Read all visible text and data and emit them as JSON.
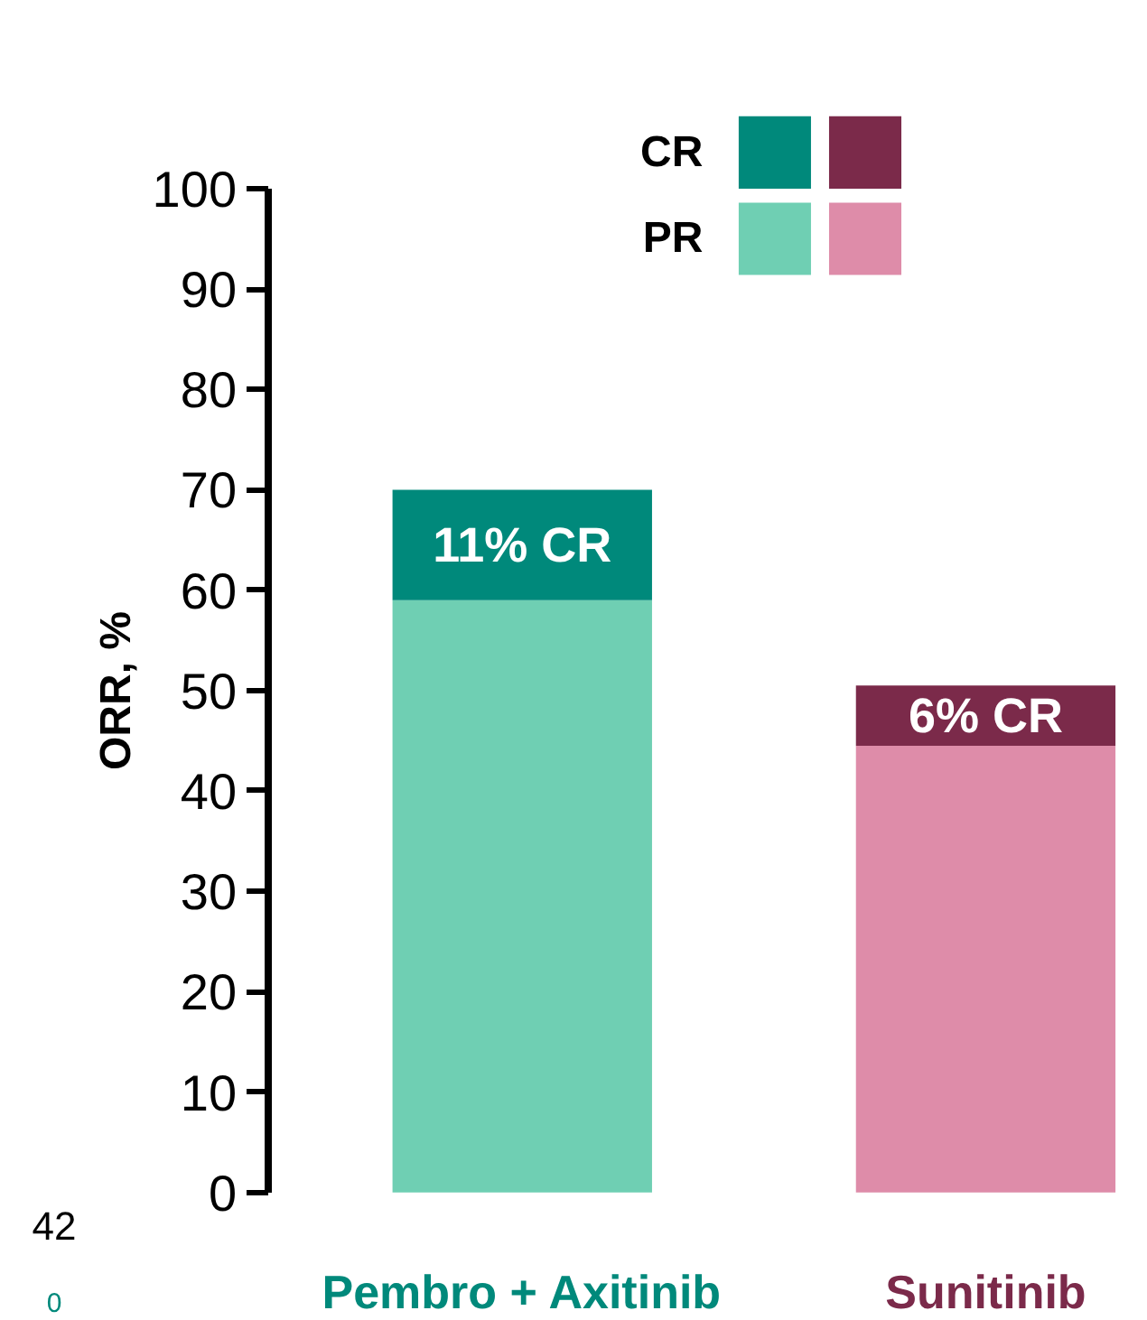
{
  "chart_data": {
    "type": "bar",
    "stacked": true,
    "ylabel": "ORR, %",
    "categories": [
      "Pembro + Axitinib",
      "Sunitinib"
    ],
    "ylim": [
      0,
      100
    ],
    "yticks": [
      0,
      10,
      20,
      30,
      40,
      50,
      60,
      70,
      80,
      90,
      100
    ],
    "grid": false,
    "legend": "top",
    "series": [
      {
        "name": "PR",
        "colors": [
          "#6fcfb3",
          "#de8ca9"
        ],
        "values": [
          59,
          44.5
        ]
      },
      {
        "name": "CR",
        "colors": [
          "#00897b",
          "#7b2a4a"
        ],
        "values": [
          11,
          6
        ],
        "value_labels": [
          "11% CR",
          "6% CR"
        ]
      }
    ],
    "annotations": [
      "42",
      "0"
    ]
  }
}
